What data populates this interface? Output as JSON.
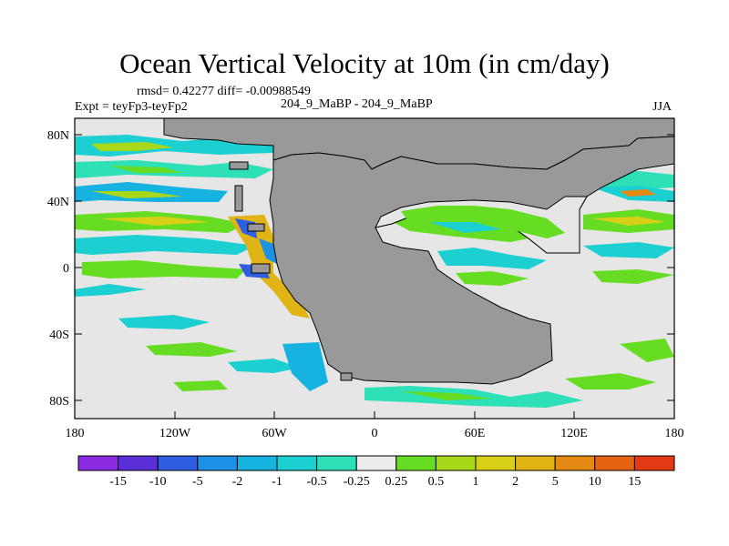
{
  "title": "Ocean Vertical Velocity at 10m (in cm/day)",
  "stats": "rmsd= 0.42277  diff= -0.00988549",
  "experiment": "Expt = teyFp3-teyFp2",
  "runs": "204_9_MaBP - 204_9_MaBP",
  "season": "JJA",
  "axes": {
    "lat_labels": [
      "80N",
      "40N",
      "0",
      "40S",
      "80S"
    ],
    "lon_labels": [
      "180",
      "120W",
      "60W",
      "0",
      "60E",
      "120E",
      "180"
    ]
  },
  "colorbar": {
    "colors": [
      "#8a2be2",
      "#5a2fd8",
      "#2f5fe0",
      "#1e90e6",
      "#17b3e0",
      "#1ccfd0",
      "#2ee0b8",
      "#ececec",
      "#66dd22",
      "#a8d81a",
      "#d8d016",
      "#e0b414",
      "#e48a12",
      "#e46414",
      "#e23a14"
    ],
    "labels": [
      "-15",
      "-10",
      "-5",
      "-2",
      "-1",
      "-0.5",
      "-0.25",
      "0.25",
      "0.5",
      "1",
      "2",
      "5",
      "10",
      "15"
    ]
  },
  "map_colors": {
    "ocean_background": "#e6e6e6",
    "land": "#999999"
  }
}
